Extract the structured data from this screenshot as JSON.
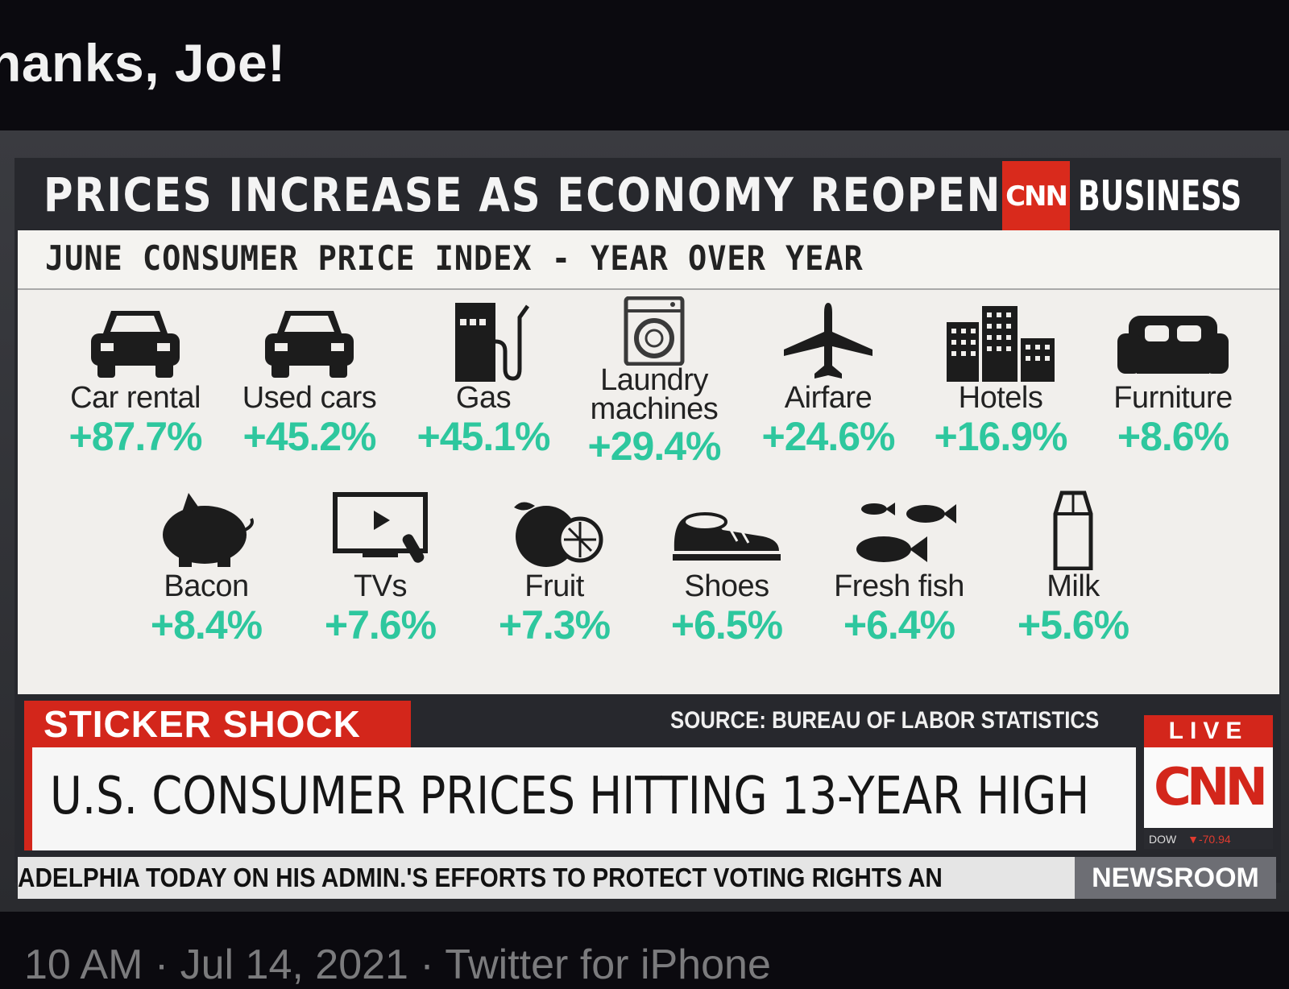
{
  "caption": "hanks, Joe!",
  "footer_partial": "10 AM · Jul 14, 2021 · Twitter for iPhone",
  "graphic": {
    "title": "PRICES INCREASE AS ECONOMY REOPENS",
    "brand_logo": "CNN",
    "brand_sub": "BUSINESS",
    "subtitle": "JUNE CONSUMER PRICE INDEX - YEAR OVER YEAR",
    "value_color": "#2ec79e",
    "row1": [
      {
        "label": "Car rental",
        "value": "+87.7%",
        "icon": "car-icon"
      },
      {
        "label": "Used cars",
        "value": "+45.2%",
        "icon": "car-icon"
      },
      {
        "label": "Gas",
        "value": "+45.1%",
        "icon": "gas-pump-icon"
      },
      {
        "label": "Laundry machines",
        "value": "+29.4%",
        "icon": "washing-machine-icon"
      },
      {
        "label": "Airfare",
        "value": "+24.6%",
        "icon": "airplane-icon"
      },
      {
        "label": "Hotels",
        "value": "+16.9%",
        "icon": "buildings-icon"
      },
      {
        "label": "Furniture",
        "value": "+8.6%",
        "icon": "sofa-icon"
      }
    ],
    "row2": [
      {
        "label": "Bacon",
        "value": "+8.4%",
        "icon": "pig-icon"
      },
      {
        "label": "TVs",
        "value": "+7.6%",
        "icon": "tv-icon"
      },
      {
        "label": "Fruit",
        "value": "+7.3%",
        "icon": "fruit-icon"
      },
      {
        "label": "Shoes",
        "value": "+6.5%",
        "icon": "shoe-icon"
      },
      {
        "label": "Fresh fish",
        "value": "+6.4%",
        "icon": "fish-icon"
      },
      {
        "label": "Milk",
        "value": "+5.6%",
        "icon": "milk-carton-icon"
      }
    ]
  },
  "chyron": {
    "tag": "STICKER SHOCK",
    "source": "SOURCE: BUREAU OF LABOR STATISTICS",
    "headline": "U.S. CONSUMER PRICES HITTING 13-YEAR HIGH",
    "live": "LIVE",
    "network_logo": "CNN",
    "dow_label": "DOW",
    "dow_value": "▼-70.94",
    "ticker": "ADELPHIA TODAY ON HIS ADMIN.'S EFFORTS TO PROTECT VOTING RIGHTS AN",
    "show": "NEWSROOM",
    "accent": "#d3261b"
  }
}
